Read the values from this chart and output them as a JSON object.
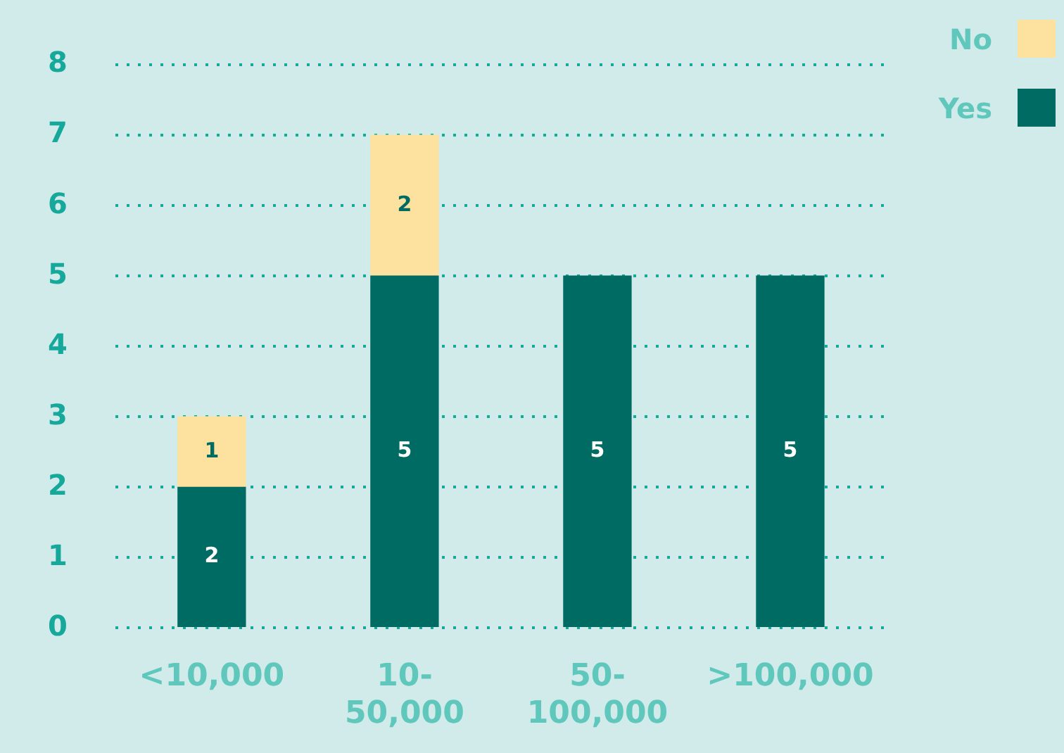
{
  "chart_data": {
    "type": "bar",
    "stacked": true,
    "categories": [
      "<10,000",
      "10-50,000",
      "50-100,000",
      ">100,000"
    ],
    "series": [
      {
        "name": "Yes",
        "color": "#006b63",
        "values": [
          2,
          5,
          5,
          5
        ]
      },
      {
        "name": "No",
        "color": "#fde29f",
        "values": [
          1,
          2,
          null,
          null
        ]
      }
    ],
    "ylim": [
      0,
      8
    ],
    "yticks": [
      0,
      1,
      2,
      3,
      4,
      5,
      6,
      7,
      8
    ],
    "grid": "y",
    "legend": "top right",
    "data_labels": true
  }
}
